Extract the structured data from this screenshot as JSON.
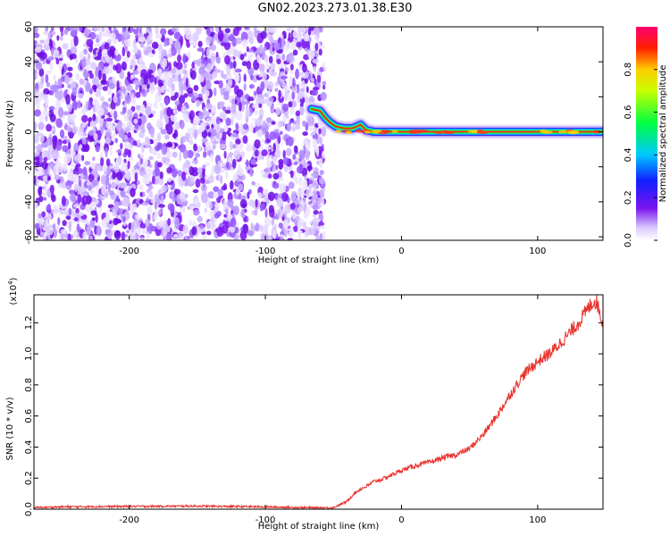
{
  "title": "GN02.2023.273.01.38.E30",
  "colors": {
    "snr_line": "#e8302a",
    "noise_purple": "#7a14f0",
    "axis": "#000000"
  },
  "chart_data": [
    {
      "type": "heatmap",
      "name": "spectrogram",
      "xlabel": "Height of straight line (km)",
      "ylabel": "Frequency (Hz)",
      "xlim": [
        -270,
        148
      ],
      "ylim": [
        -62,
        60
      ],
      "xticks": [
        -200,
        -100,
        0,
        100
      ],
      "yticks": [
        60,
        40,
        20,
        0,
        -20,
        -40,
        -60
      ],
      "colorbar": {
        "label": "Normalized spectral amplitude",
        "range": [
          0,
          1
        ],
        "ticks": [
          "0.0",
          "0.2",
          "0.4",
          "0.6",
          "0.8"
        ],
        "colormap": "rainbow"
      },
      "noise_region_xmax": -62,
      "signal_track": [
        [
          -66,
          13
        ],
        [
          -60,
          12
        ],
        [
          -56,
          8
        ],
        [
          -52,
          5
        ],
        [
          -48,
          3
        ],
        [
          -42,
          2
        ],
        [
          -36,
          2
        ],
        [
          -30,
          4
        ],
        [
          -26,
          1
        ],
        [
          -20,
          0
        ],
        [
          -10,
          0
        ],
        [
          0,
          0
        ],
        [
          50,
          0
        ],
        [
          148,
          0
        ]
      ]
    },
    {
      "type": "line",
      "name": "snr",
      "xlabel": "Height of straight line (km)",
      "ylabel": "SNR (10 * v/v)",
      "multiplier_label": "(x10",
      "multiplier_exp": "4",
      "xlim": [
        -270,
        148
      ],
      "ylim": [
        0,
        1.38
      ],
      "xticks": [
        -200,
        -100,
        0,
        100
      ],
      "yticks": [
        "0.0",
        "0.2",
        "0.4",
        "0.6",
        "0.8",
        "1.0",
        "1.2"
      ],
      "series": [
        {
          "x": [
            -270,
            -250,
            -200,
            -150,
            -100,
            -70,
            -50,
            -40,
            -35,
            -30,
            -25,
            -20,
            -15,
            -10,
            -5,
            0,
            10,
            20,
            30,
            40,
            50,
            60,
            70,
            80,
            90,
            100,
            110,
            120,
            130,
            140,
            143,
            146,
            148
          ],
          "y": [
            0.01,
            0.015,
            0.018,
            0.02,
            0.015,
            0.01,
            0.01,
            0.05,
            0.1,
            0.13,
            0.15,
            0.18,
            0.19,
            0.21,
            0.23,
            0.25,
            0.28,
            0.3,
            0.33,
            0.35,
            0.39,
            0.48,
            0.6,
            0.74,
            0.87,
            0.95,
            1.01,
            1.1,
            1.2,
            1.33,
            1.34,
            1.26,
            1.19
          ]
        }
      ]
    }
  ]
}
